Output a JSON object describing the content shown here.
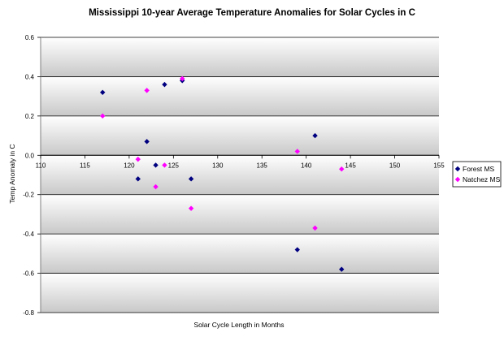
{
  "chart_data": {
    "type": "scatter",
    "title": "Mississippi 10-year Average Temperature Anomalies for Solar Cycles in C",
    "xlabel": "Solar Cycle Length in Months",
    "ylabel": "Temp Anomaly in C",
    "xlim": [
      110,
      155
    ],
    "ylim": [
      -0.8,
      0.6
    ],
    "x_ticks": [
      110,
      115,
      120,
      125,
      130,
      135,
      140,
      145,
      150,
      155
    ],
    "y_ticks": [
      0.6,
      0.4,
      0.2,
      0.0,
      -0.2,
      -0.4,
      -0.6,
      -0.8
    ],
    "x_tick_labels": [
      "110",
      "115",
      "120",
      "125",
      "130",
      "135",
      "140",
      "145",
      "150",
      "155"
    ],
    "y_tick_labels": [
      "0.6",
      "0.4",
      "0.2",
      "0.0",
      "-0.2",
      "-0.4",
      "-0.6",
      "-0.8"
    ],
    "grid": true,
    "legend_position": "right",
    "series": [
      {
        "name": "Forest MS",
        "color": "#000080",
        "marker": "diamond",
        "points": [
          [
            117,
            0.32
          ],
          [
            121,
            -0.12
          ],
          [
            122,
            0.07
          ],
          [
            123,
            -0.05
          ],
          [
            124,
            0.36
          ],
          [
            126,
            0.38
          ],
          [
            127,
            -0.12
          ],
          [
            139,
            -0.48
          ],
          [
            141,
            0.1
          ],
          [
            144,
            -0.58
          ]
        ]
      },
      {
        "name": "Natchez MS",
        "color": "#ff00ff",
        "marker": "diamond",
        "points": [
          [
            117,
            0.2
          ],
          [
            121,
            -0.02
          ],
          [
            122,
            0.33
          ],
          [
            123,
            -0.16
          ],
          [
            124,
            -0.05
          ],
          [
            126,
            0.39
          ],
          [
            127,
            -0.27
          ],
          [
            139,
            0.02
          ],
          [
            141,
            -0.37
          ],
          [
            144,
            -0.07
          ]
        ]
      }
    ]
  }
}
